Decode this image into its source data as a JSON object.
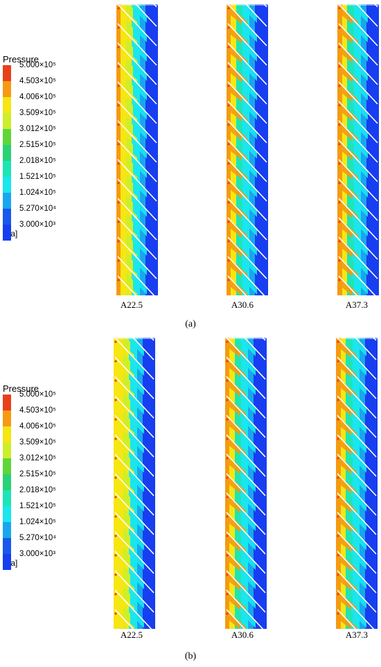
{
  "legend": {
    "title": "Pressure",
    "unit": "[Pa]",
    "labels": [
      "5.000×10⁵",
      "4.503×10⁵",
      "4.006×10⁵",
      "3.509×10⁵",
      "3.012×10⁵",
      "2.515×10⁵",
      "2.018×10⁵",
      "1.521×10⁵",
      "1.024×10⁵",
      "5.270×10⁴",
      "3.000×10³"
    ],
    "colors": [
      "#e8401c",
      "#f59a12",
      "#f6e612",
      "#cdef2a",
      "#5ed63a",
      "#28d275",
      "#1de5b6",
      "#1ae6ee",
      "#19a6ee",
      "#1858ec",
      "#173ef0"
    ]
  },
  "panels": [
    {
      "caption": "(a)",
      "cases": [
        "A22.5",
        "A30.6",
        "A37.3"
      ]
    },
    {
      "caption": "(b)",
      "cases": [
        "A22.5",
        "A30.6",
        "A37.3"
      ]
    }
  ]
}
